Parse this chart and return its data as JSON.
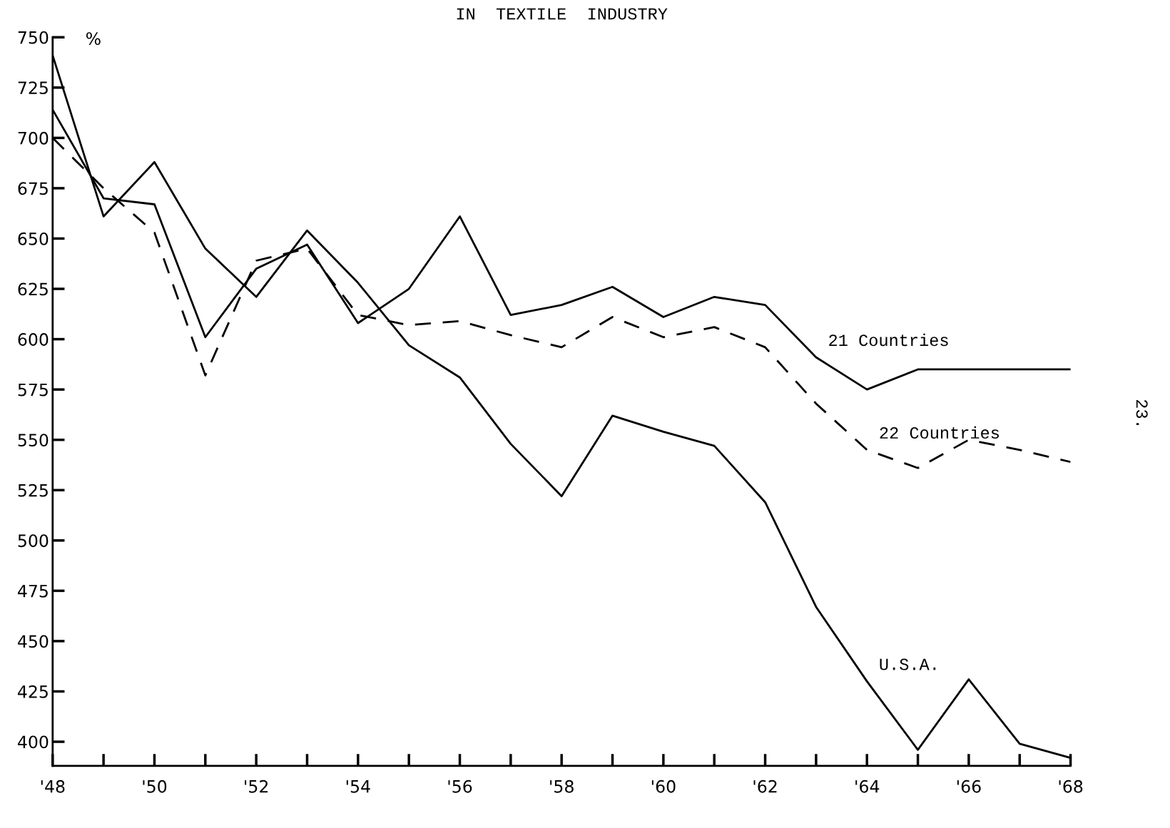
{
  "chart_data": {
    "type": "line",
    "title": "IN  TEXTILE  INDUSTRY",
    "ylabel": "%",
    "x": [
      1948,
      1949,
      1950,
      1951,
      1952,
      1953,
      1954,
      1955,
      1956,
      1957,
      1958,
      1959,
      1960,
      1961,
      1962,
      1963,
      1964,
      1965,
      1966,
      1967,
      1968
    ],
    "series": [
      {
        "name": "21 Countries",
        "color": "#000000",
        "line_style": "solid",
        "values": [
          714,
          670,
          667,
          601,
          635,
          647,
          608,
          625,
          661,
          612,
          617,
          626,
          611,
          621,
          617,
          591,
          575,
          585,
          585,
          585,
          585
        ]
      },
      {
        "name": "22 Countries",
        "color": "#000000",
        "line_style": "dashed",
        "values": [
          700,
          675,
          653,
          582,
          639,
          645,
          612,
          607,
          609,
          602,
          596,
          611,
          601,
          606,
          596,
          568,
          545,
          536,
          550,
          545,
          539
        ]
      },
      {
        "name": "U.S.A.",
        "color": "#000000",
        "line_style": "solid",
        "values": [
          741,
          661,
          688,
          645,
          621,
          654,
          628,
          597,
          581,
          548,
          522,
          562,
          554,
          547,
          519,
          467,
          430,
          396,
          431,
          399,
          392
        ]
      }
    ],
    "xlim": [
      1948,
      1968
    ],
    "ylim": [
      388,
      750
    ],
    "xticks": [
      {
        "value": 1948,
        "label": "'48"
      },
      {
        "value": 1950,
        "label": "'50"
      },
      {
        "value": 1952,
        "label": "'52"
      },
      {
        "value": 1954,
        "label": "'54"
      },
      {
        "value": 1956,
        "label": "'56"
      },
      {
        "value": 1958,
        "label": "'58"
      },
      {
        "value": 1960,
        "label": "'60"
      },
      {
        "value": 1962,
        "label": "'62"
      },
      {
        "value": 1964,
        "label": "'64"
      },
      {
        "value": 1966,
        "label": "'66"
      },
      {
        "value": 1968,
        "label": "'68"
      }
    ],
    "yticks": [
      400,
      425,
      450,
      475,
      500,
      525,
      550,
      575,
      600,
      625,
      650,
      675,
      700,
      725,
      750
    ],
    "annotations": [
      "23."
    ],
    "grid": false,
    "legend": false,
    "marker": "none"
  }
}
